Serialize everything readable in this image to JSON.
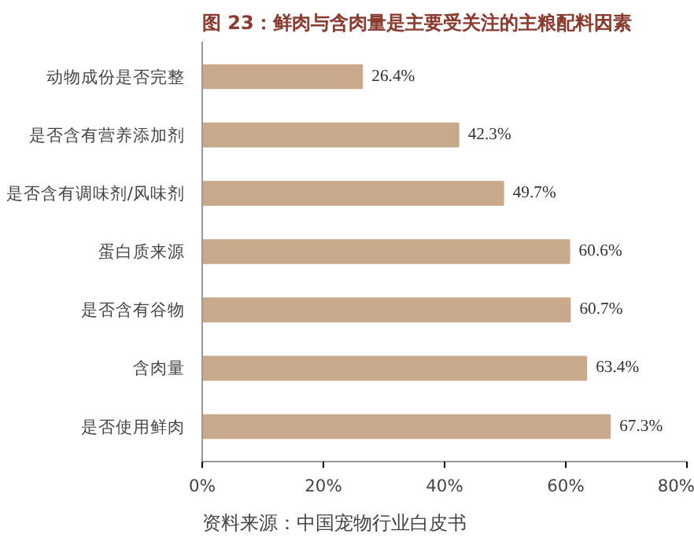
{
  "chart_data": {
    "type": "bar",
    "orientation": "horizontal",
    "title": "图 23：鲜肉与含肉量是主要受关注的主粮配料因素",
    "categories": [
      "动物成份是否完整",
      "是否含有营养添加剂",
      "是否含有调味剂/风味剂",
      "蛋白质来源",
      "是否含有谷物",
      "含肉量",
      "是否使用鲜肉"
    ],
    "values": [
      26.4,
      42.3,
      49.7,
      60.6,
      60.7,
      63.4,
      67.3
    ],
    "value_labels": [
      "26.4%",
      "42.3%",
      "49.7%",
      "60.6%",
      "60.7%",
      "63.4%",
      "67.3%"
    ],
    "color": "#c9a98b",
    "xlim": [
      0,
      80
    ],
    "xticks": [
      {
        "value": 0,
        "label": "0%"
      },
      {
        "value": 20,
        "label": "20%"
      },
      {
        "value": 40,
        "label": "40%"
      },
      {
        "value": 60,
        "label": "60%"
      },
      {
        "value": 80,
        "label": "80%"
      }
    ],
    "grid": false,
    "annotations": [
      "资料来源：中国宠物行业白皮书"
    ]
  }
}
